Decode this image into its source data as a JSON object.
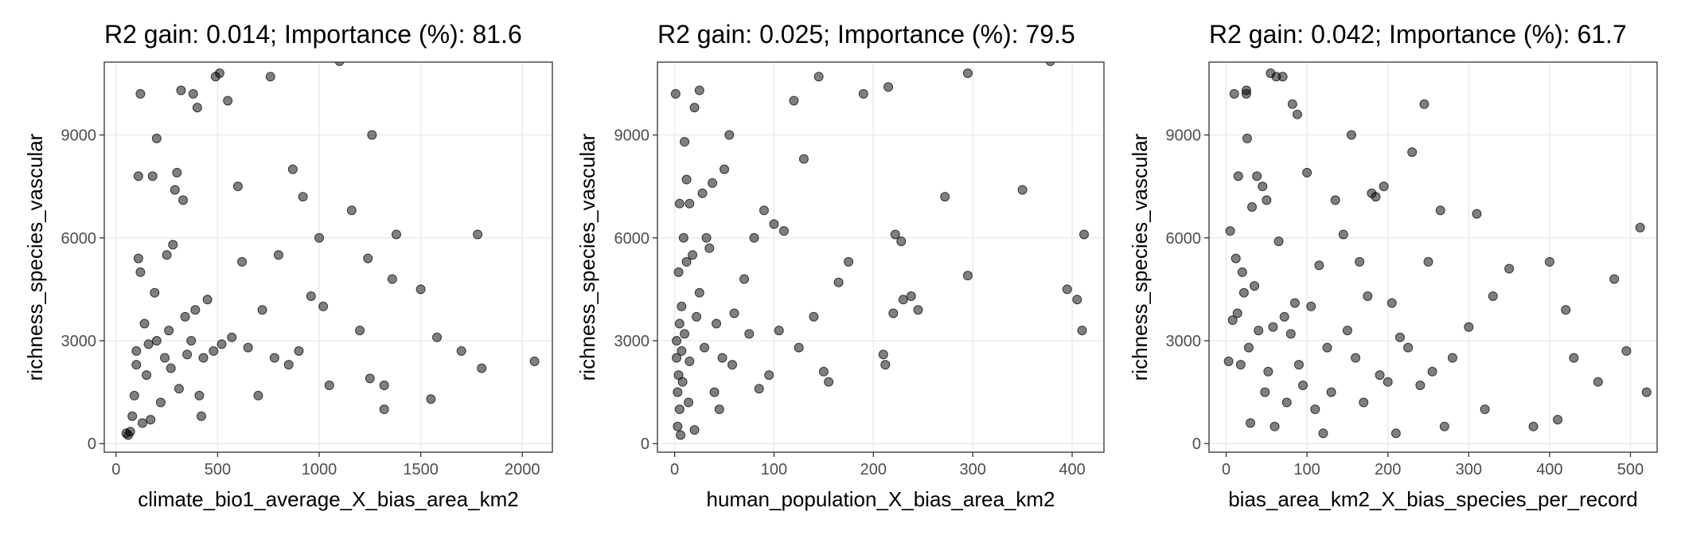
{
  "chart_data": [
    {
      "type": "scatter",
      "title": "R2 gain: 0.014; Importance (%): 81.6",
      "xlabel": "climate_bio1_average_X_bias_area_km2",
      "ylabel": "richness_species_vascular",
      "xlim": [
        -58,
        2148
      ],
      "ylim": [
        -250,
        11125
      ],
      "xticks": [
        0,
        500,
        1000,
        1500,
        2000
      ],
      "yticks": [
        0,
        3000,
        6000,
        9000
      ],
      "grid": true,
      "color": "#000000",
      "opacity": 0.5,
      "x": [
        50,
        60,
        70,
        80,
        90,
        100,
        100,
        110,
        110,
        120,
        120,
        130,
        140,
        150,
        160,
        170,
        180,
        190,
        200,
        200,
        220,
        240,
        250,
        260,
        270,
        280,
        290,
        300,
        310,
        320,
        330,
        340,
        350,
        370,
        380,
        390,
        400,
        410,
        420,
        430,
        450,
        480,
        490,
        510,
        520,
        550,
        570,
        600,
        620,
        650,
        700,
        720,
        760,
        780,
        800,
        850,
        870,
        900,
        920,
        960,
        1000,
        1020,
        1050,
        1100,
        1160,
        1200,
        1240,
        1250,
        1260,
        1320,
        1320,
        1360,
        1380,
        1500,
        1550,
        1580,
        1700,
        1780,
        1800,
        2060
      ],
      "values": [
        300,
        250,
        350,
        800,
        1400,
        2300,
        2700,
        5400,
        7800,
        10200,
        5000,
        600,
        3500,
        2000,
        2900,
        700,
        7800,
        4400,
        8900,
        3000,
        1200,
        2500,
        5500,
        3300,
        2200,
        5800,
        7400,
        7900,
        1600,
        10300,
        7100,
        3700,
        2600,
        3000,
        10200,
        3900,
        9800,
        1400,
        800,
        2500,
        4200,
        2700,
        10700,
        10800,
        2900,
        10000,
        3100,
        7500,
        5300,
        2800,
        1400,
        3900,
        10700,
        2500,
        5500,
        2300,
        8000,
        2700,
        7200,
        4300,
        6000,
        4000,
        1700,
        11150,
        6800,
        3300,
        5400,
        1900,
        9000,
        1700,
        1000,
        4800,
        6100,
        4500,
        1300,
        3100,
        2700,
        6100,
        2200,
        2400
      ]
    },
    {
      "type": "scatter",
      "title": "R2 gain: 0.025; Importance (%): 79.5",
      "xlabel": "human_population_X_bias_area_km2",
      "ylabel": "richness_species_vascular",
      "xlim": [
        -17.3,
        432
      ],
      "ylim": [
        -250,
        11125
      ],
      "xticks": [
        0,
        100,
        200,
        300,
        400
      ],
      "yticks": [
        0,
        3000,
        6000,
        9000
      ],
      "grid": true,
      "color": "#000000",
      "opacity": 0.5,
      "x": [
        1,
        2,
        2,
        3,
        3,
        4,
        4,
        5,
        5,
        5,
        6,
        7,
        7,
        8,
        9,
        10,
        10,
        12,
        12,
        14,
        15,
        15,
        18,
        20,
        20,
        22,
        25,
        25,
        28,
        30,
        32,
        35,
        38,
        40,
        42,
        45,
        48,
        50,
        55,
        58,
        60,
        70,
        75,
        80,
        85,
        90,
        95,
        100,
        105,
        110,
        120,
        125,
        130,
        140,
        145,
        150,
        155,
        165,
        175,
        190,
        210,
        212,
        215,
        220,
        222,
        228,
        230,
        238,
        245,
        272,
        295,
        295,
        350,
        378,
        395,
        405,
        410,
        412
      ],
      "values": [
        10200,
        3000,
        2500,
        1500,
        500,
        2000,
        5000,
        1000,
        3500,
        7000,
        250,
        4000,
        2700,
        1800,
        6000,
        8800,
        3200,
        5300,
        7700,
        1200,
        2400,
        7000,
        5500,
        9800,
        400,
        3700,
        10300,
        4400,
        7300,
        2800,
        6000,
        5700,
        7600,
        1500,
        3500,
        1000,
        2500,
        8000,
        9000,
        2300,
        3800,
        4800,
        3200,
        6000,
        1600,
        6800,
        2000,
        6400,
        3300,
        6200,
        10000,
        2800,
        8300,
        3700,
        10700,
        2100,
        1800,
        4700,
        5300,
        10200,
        2600,
        2300,
        10400,
        3800,
        6100,
        5900,
        4200,
        4300,
        3900,
        7200,
        10800,
        4900,
        7400,
        11150,
        4500,
        4200,
        3300,
        6100
      ]
    },
    {
      "type": "scatter",
      "title": "R2 gain: 0.042; Importance (%): 61.7",
      "xlabel": "bias_area_km2_X_bias_species_per_record",
      "ylabel": "richness_species_vascular",
      "xlim": [
        -21.2,
        533
      ],
      "ylim": [
        -250,
        11125
      ],
      "xticks": [
        0,
        100,
        200,
        300,
        400,
        500
      ],
      "yticks": [
        0,
        3000,
        6000,
        9000
      ],
      "grid": true,
      "color": "#000000",
      "opacity": 0.5,
      "x": [
        3,
        5,
        8,
        10,
        12,
        14,
        15,
        18,
        20,
        22,
        25,
        25,
        26,
        28,
        30,
        32,
        35,
        38,
        40,
        45,
        48,
        50,
        52,
        55,
        58,
        60,
        62,
        65,
        70,
        72,
        75,
        80,
        82,
        85,
        88,
        90,
        95,
        100,
        105,
        110,
        115,
        120,
        125,
        130,
        135,
        145,
        150,
        155,
        160,
        165,
        170,
        175,
        180,
        185,
        190,
        195,
        200,
        205,
        210,
        215,
        225,
        230,
        240,
        245,
        250,
        255,
        265,
        270,
        280,
        300,
        310,
        320,
        330,
        350,
        380,
        400,
        410,
        420,
        430,
        460,
        480,
        495,
        512,
        520
      ],
      "values": [
        2400,
        6200,
        3600,
        10200,
        5400,
        3800,
        7800,
        2300,
        5000,
        4400,
        10300,
        10200,
        8900,
        2800,
        600,
        6900,
        4600,
        7800,
        3300,
        7500,
        1500,
        7100,
        2100,
        10800,
        3400,
        500,
        10700,
        5900,
        10700,
        3700,
        1200,
        3200,
        9900,
        4100,
        9600,
        2300,
        1700,
        7900,
        4000,
        1000,
        5200,
        300,
        2800,
        1500,
        7100,
        6100,
        3300,
        9000,
        2500,
        5300,
        1200,
        4300,
        7300,
        7200,
        2000,
        7500,
        1800,
        4100,
        300,
        3100,
        2800,
        8500,
        1700,
        9900,
        5300,
        2100,
        6800,
        500,
        2500,
        3400,
        6700,
        1000,
        4300,
        5100,
        500,
        5300,
        700,
        3900,
        2500,
        1800,
        4800,
        2700,
        6300,
        1500
      ]
    }
  ]
}
